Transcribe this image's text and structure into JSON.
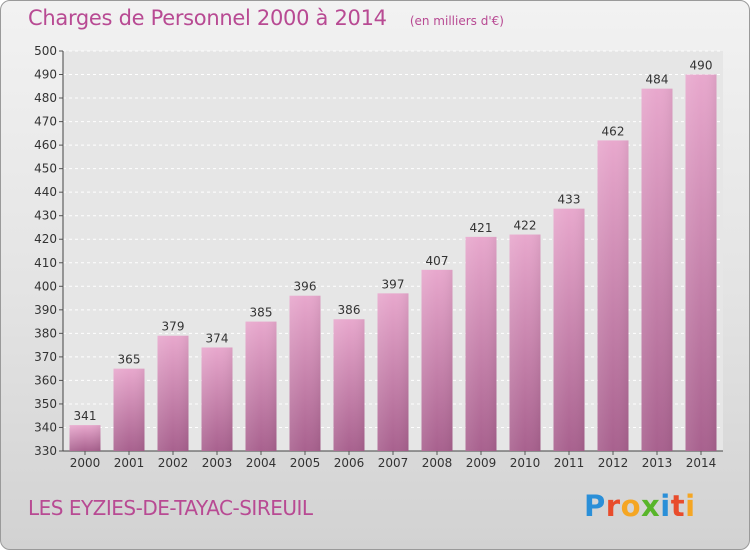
{
  "chart_data": {
    "type": "bar",
    "title": "Charges de Personnel 2000 à 2014",
    "subtitle": "(en milliers d'€)",
    "categories": [
      "2000",
      "2001",
      "2002",
      "2003",
      "2004",
      "2005",
      "2006",
      "2007",
      "2008",
      "2009",
      "2010",
      "2011",
      "2012",
      "2013",
      "2014"
    ],
    "values": [
      341,
      365,
      379,
      374,
      385,
      396,
      386,
      397,
      407,
      421,
      422,
      433,
      462,
      484,
      490
    ],
    "ylim": [
      330,
      500
    ],
    "yticks": [
      330,
      340,
      350,
      360,
      370,
      380,
      390,
      400,
      410,
      420,
      430,
      440,
      450,
      460,
      470,
      480,
      490,
      500
    ],
    "grid": true,
    "bar_color": "#d98bb9"
  },
  "footer": {
    "commune": "LES EYZIES-DE-TAYAC-SIREUIL",
    "logo_letters": [
      "P",
      "r",
      "o",
      "x",
      "i",
      "t",
      "i"
    ]
  },
  "colors": {
    "title": "#b84a93",
    "bar_light": "#e8a8cd",
    "bar_dark": "#a8618e"
  }
}
